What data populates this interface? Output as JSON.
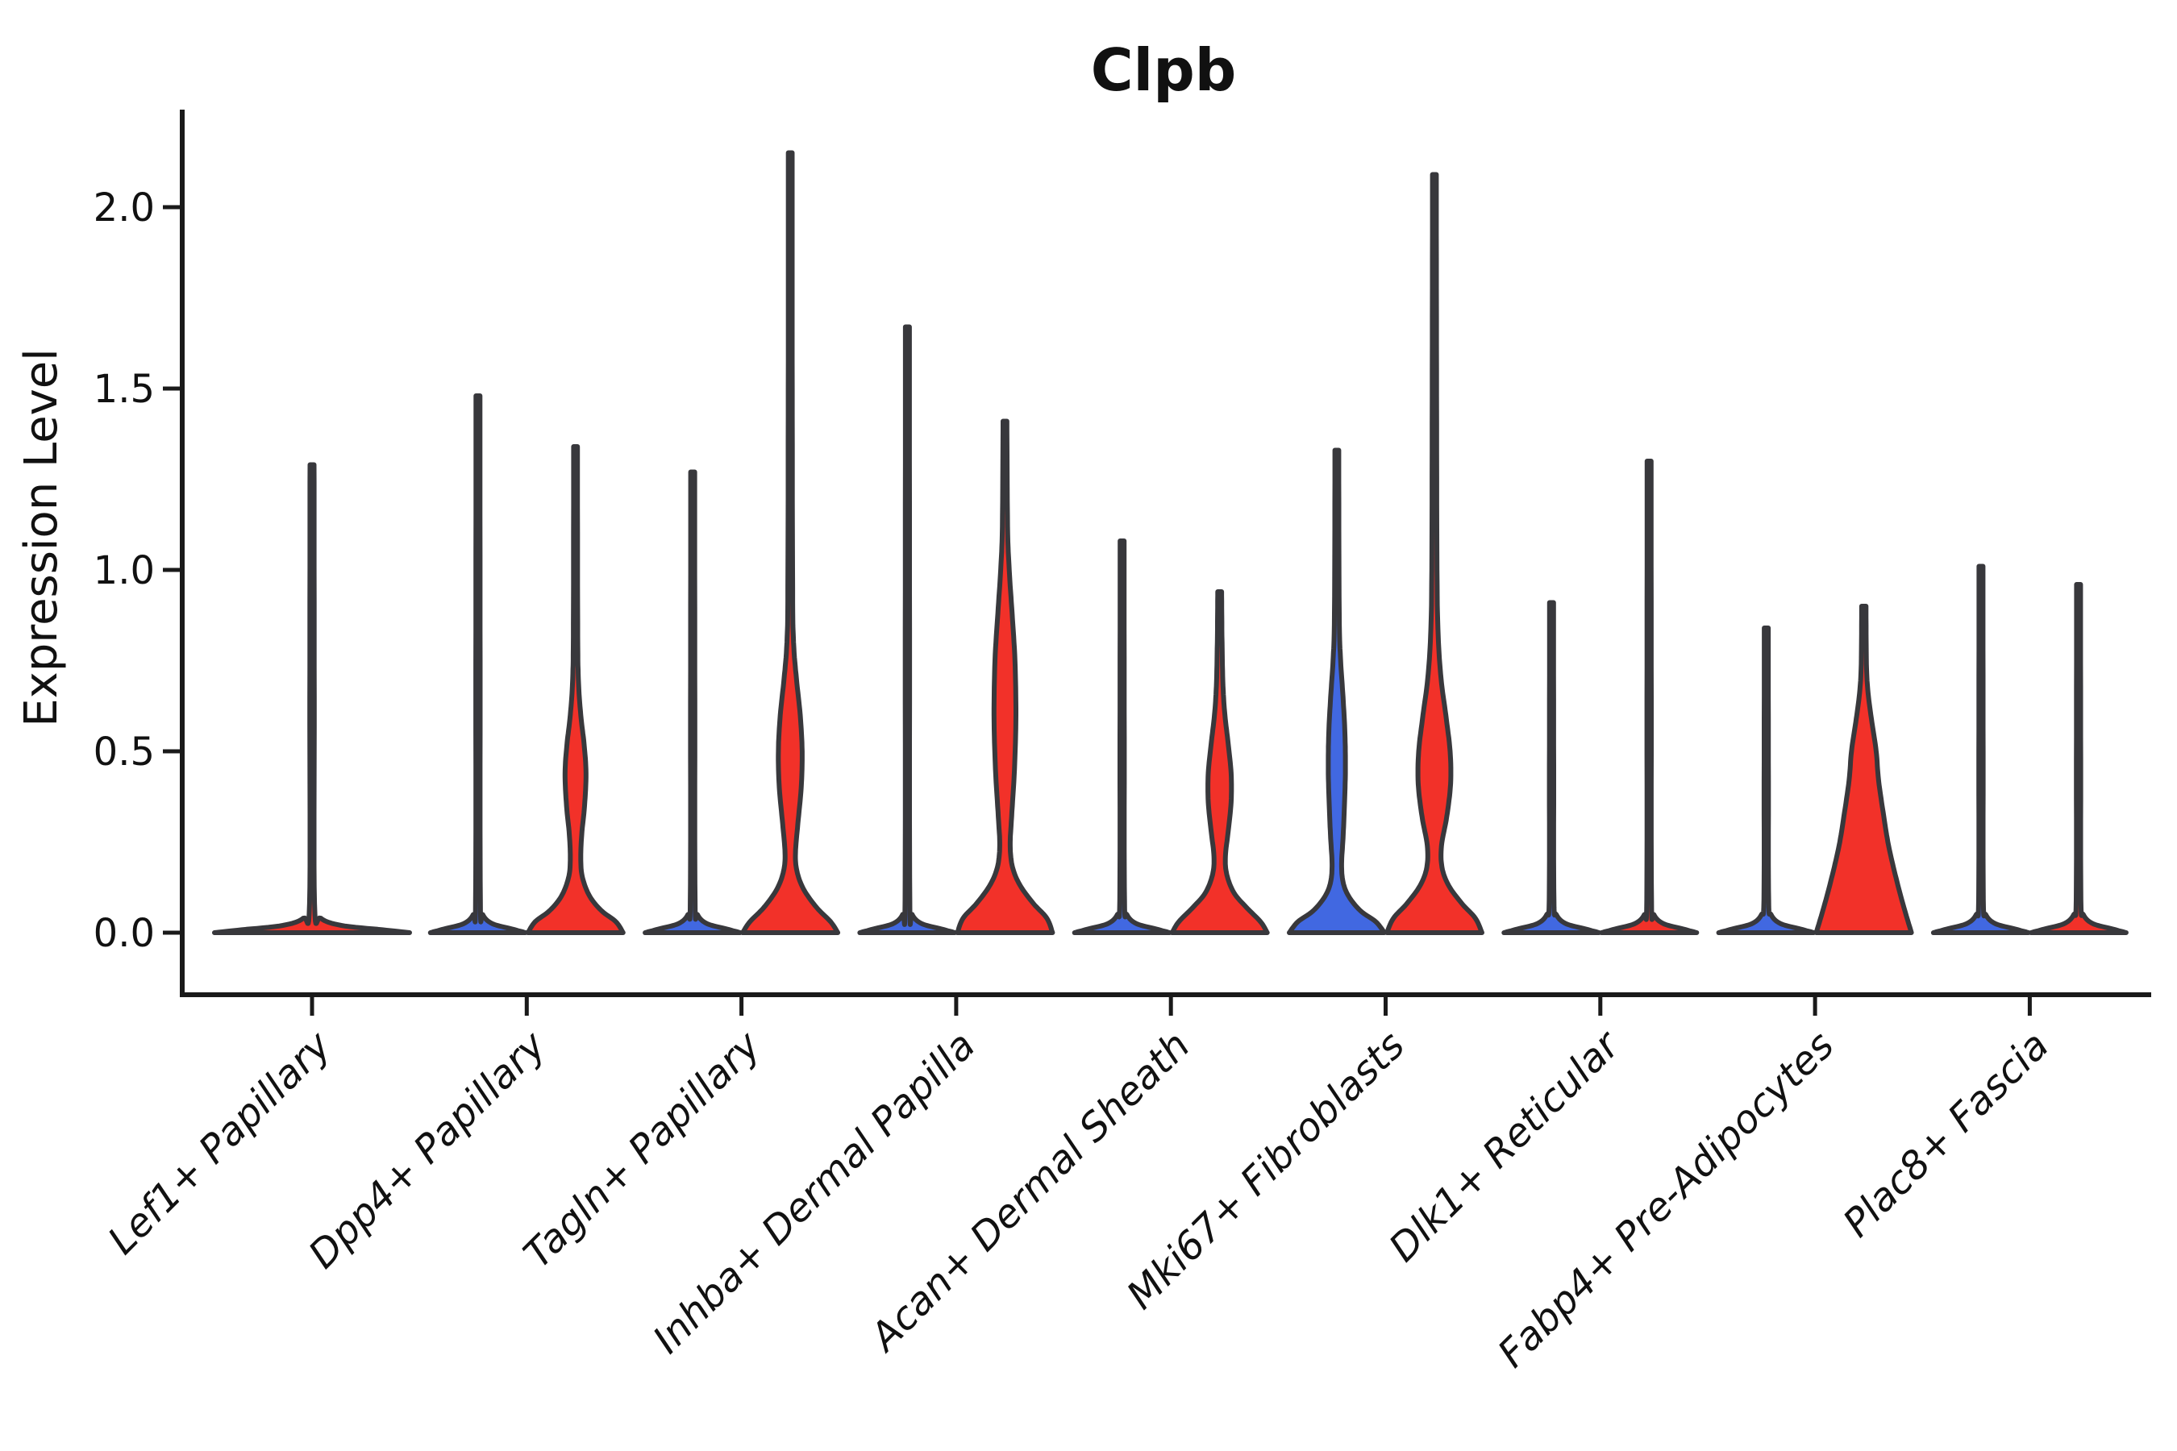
{
  "title": "Clpb",
  "y_axis": {
    "label": "Expression Level",
    "tick_labels": [
      "0.0",
      "0.5",
      "1.0",
      "1.5",
      "2.0"
    ],
    "tick_values": [
      0.0,
      0.5,
      1.0,
      1.5,
      2.0
    ]
  },
  "x_axis": {
    "categories": [
      "Lef1+ Papillary",
      "Dpp4+ Papillary",
      "Tagln+ Papillary",
      "Inhba+ Dermal Papilla",
      "Acan+ Dermal Sheath",
      "Mki67+ Fibroblasts",
      "Dlk1+ Reticular",
      "Fabp4+ Pre-Adipocytes",
      "Plac8+ Fascia"
    ]
  },
  "colors": {
    "red": "#F23129",
    "blue": "#4168E1",
    "outline": "#38383C",
    "axis": "#1A1A1A",
    "background": "#FFFFFF"
  },
  "chart_data": {
    "type": "violin",
    "title": "Clpb",
    "ylabel": "Expression Level",
    "ylim": [
      -0.08,
      2.27
    ],
    "grid": false,
    "legend": "none",
    "categories": [
      "Lef1+ Papillary",
      "Dpp4+ Papillary",
      "Tagln+ Papillary",
      "Inhba+ Dermal Papilla",
      "Acan+ Dermal Sheath",
      "Mki67+ Fibroblasts",
      "Dlk1+ Reticular",
      "Fabp4+ Pre-Adipocytes",
      "Plac8+ Fascia"
    ],
    "violins": [
      {
        "category": "Lef1+ Papillary",
        "slot": "full",
        "color": "red",
        "max_expression": 1.29,
        "body": "flat",
        "density_profile": [
          [
            0,
            1
          ],
          [
            0.008,
            0.72
          ],
          [
            0.02,
            0.3
          ],
          [
            0.04,
            0.09
          ],
          [
            0.08,
            0.026
          ],
          [
            0.65,
            0.023
          ],
          [
            1.29,
            0.021
          ]
        ]
      },
      {
        "category": "Dpp4+ Papillary",
        "slot": "left",
        "color": "blue",
        "max_expression": 1.48,
        "body": "flat",
        "density_profile": [
          [
            0,
            1
          ],
          [
            0.01,
            0.72
          ],
          [
            0.025,
            0.3
          ],
          [
            0.05,
            0.1
          ],
          [
            0.09,
            0.05
          ],
          [
            0.74,
            0.045
          ],
          [
            1.48,
            0.042
          ]
        ]
      },
      {
        "category": "Dpp4+ Papillary",
        "slot": "right",
        "color": "red",
        "max_expression": 1.34,
        "body": "bulge",
        "density_profile": [
          [
            0,
            1
          ],
          [
            0.03,
            0.85
          ],
          [
            0.06,
            0.55
          ],
          [
            0.1,
            0.3
          ],
          [
            0.15,
            0.15
          ],
          [
            0.2,
            0.11
          ],
          [
            0.27,
            0.13
          ],
          [
            0.35,
            0.19
          ],
          [
            0.44,
            0.22
          ],
          [
            0.52,
            0.18
          ],
          [
            0.6,
            0.11
          ],
          [
            0.7,
            0.06
          ],
          [
            0.85,
            0.045
          ],
          [
            1.34,
            0.04
          ]
        ]
      },
      {
        "category": "Tagln+ Papillary",
        "slot": "left",
        "color": "blue",
        "max_expression": 1.27,
        "body": "flat",
        "density_profile": [
          [
            0,
            1
          ],
          [
            0.01,
            0.72
          ],
          [
            0.025,
            0.3
          ],
          [
            0.05,
            0.1
          ],
          [
            0.09,
            0.05
          ],
          [
            0.64,
            0.045
          ],
          [
            1.27,
            0.042
          ]
        ]
      },
      {
        "category": "Tagln+ Papillary",
        "slot": "right",
        "color": "red",
        "max_expression": 2.15,
        "body": "bulge",
        "density_profile": [
          [
            0,
            1
          ],
          [
            0.03,
            0.85
          ],
          [
            0.07,
            0.55
          ],
          [
            0.12,
            0.28
          ],
          [
            0.17,
            0.14
          ],
          [
            0.22,
            0.11
          ],
          [
            0.3,
            0.16
          ],
          [
            0.4,
            0.23
          ],
          [
            0.5,
            0.25
          ],
          [
            0.6,
            0.21
          ],
          [
            0.7,
            0.13
          ],
          [
            0.8,
            0.07
          ],
          [
            0.95,
            0.05
          ],
          [
            1.5,
            0.042
          ],
          [
            2.15,
            0.04
          ]
        ]
      },
      {
        "category": "Inhba+ Dermal Papilla",
        "slot": "left",
        "color": "blue",
        "max_expression": 1.67,
        "body": "flat",
        "density_profile": [
          [
            0,
            1
          ],
          [
            0.01,
            0.72
          ],
          [
            0.025,
            0.3
          ],
          [
            0.05,
            0.1
          ],
          [
            0.09,
            0.05
          ],
          [
            0.84,
            0.045
          ],
          [
            1.67,
            0.042
          ]
        ]
      },
      {
        "category": "Inhba+ Dermal Papilla",
        "slot": "right",
        "color": "red",
        "max_expression": 1.41,
        "body": "bulge",
        "density_profile": [
          [
            0,
            1
          ],
          [
            0.04,
            0.88
          ],
          [
            0.08,
            0.6
          ],
          [
            0.13,
            0.32
          ],
          [
            0.18,
            0.16
          ],
          [
            0.24,
            0.11
          ],
          [
            0.32,
            0.14
          ],
          [
            0.45,
            0.2
          ],
          [
            0.6,
            0.23
          ],
          [
            0.75,
            0.21
          ],
          [
            0.88,
            0.15
          ],
          [
            1.0,
            0.09
          ],
          [
            1.12,
            0.055
          ],
          [
            1.41,
            0.04
          ]
        ]
      },
      {
        "category": "Acan+ Dermal Sheath",
        "slot": "left",
        "color": "blue",
        "max_expression": 1.08,
        "body": "flat",
        "density_profile": [
          [
            0,
            1
          ],
          [
            0.01,
            0.72
          ],
          [
            0.025,
            0.3
          ],
          [
            0.05,
            0.1
          ],
          [
            0.09,
            0.05
          ],
          [
            0.54,
            0.045
          ],
          [
            1.08,
            0.042
          ]
        ]
      },
      {
        "category": "Acan+ Dermal Sheath",
        "slot": "right",
        "color": "red",
        "max_expression": 0.94,
        "body": "bulge",
        "density_profile": [
          [
            0,
            1
          ],
          [
            0.03,
            0.86
          ],
          [
            0.07,
            0.56
          ],
          [
            0.11,
            0.3
          ],
          [
            0.16,
            0.15
          ],
          [
            0.21,
            0.12
          ],
          [
            0.28,
            0.18
          ],
          [
            0.36,
            0.24
          ],
          [
            0.44,
            0.24
          ],
          [
            0.52,
            0.18
          ],
          [
            0.6,
            0.11
          ],
          [
            0.68,
            0.07
          ],
          [
            0.8,
            0.05
          ],
          [
            0.94,
            0.04
          ]
        ]
      },
      {
        "category": "Mki67+ Fibroblasts",
        "slot": "left",
        "color": "blue",
        "max_expression": 1.33,
        "body": "bulge",
        "density_profile": [
          [
            0,
            1
          ],
          [
            0.03,
            0.82
          ],
          [
            0.06,
            0.5
          ],
          [
            0.1,
            0.25
          ],
          [
            0.14,
            0.13
          ],
          [
            0.19,
            0.1
          ],
          [
            0.26,
            0.13
          ],
          [
            0.35,
            0.16
          ],
          [
            0.45,
            0.18
          ],
          [
            0.55,
            0.17
          ],
          [
            0.65,
            0.13
          ],
          [
            0.75,
            0.08
          ],
          [
            0.88,
            0.05
          ],
          [
            1.33,
            0.04
          ]
        ]
      },
      {
        "category": "Mki67+ Fibroblasts",
        "slot": "right",
        "color": "red",
        "max_expression": 2.09,
        "body": "bulge",
        "density_profile": [
          [
            0,
            1
          ],
          [
            0.04,
            0.86
          ],
          [
            0.08,
            0.58
          ],
          [
            0.13,
            0.3
          ],
          [
            0.18,
            0.16
          ],
          [
            0.24,
            0.15
          ],
          [
            0.32,
            0.26
          ],
          [
            0.41,
            0.34
          ],
          [
            0.5,
            0.33
          ],
          [
            0.6,
            0.24
          ],
          [
            0.7,
            0.14
          ],
          [
            0.82,
            0.08
          ],
          [
            1.0,
            0.055
          ],
          [
            1.55,
            0.045
          ],
          [
            2.09,
            0.04
          ]
        ]
      },
      {
        "category": "Dlk1+ Reticular",
        "slot": "left",
        "color": "blue",
        "max_expression": 0.91,
        "body": "flat",
        "density_profile": [
          [
            0,
            1
          ],
          [
            0.01,
            0.72
          ],
          [
            0.025,
            0.3
          ],
          [
            0.05,
            0.1
          ],
          [
            0.09,
            0.05
          ],
          [
            0.46,
            0.045
          ],
          [
            0.91,
            0.042
          ]
        ]
      },
      {
        "category": "Dlk1+ Reticular",
        "slot": "right",
        "color": "red",
        "max_expression": 1.3,
        "body": "flat",
        "density_profile": [
          [
            0,
            1
          ],
          [
            0.01,
            0.72
          ],
          [
            0.025,
            0.3
          ],
          [
            0.05,
            0.1
          ],
          [
            0.09,
            0.05
          ],
          [
            0.65,
            0.045
          ],
          [
            1.3,
            0.042
          ]
        ]
      },
      {
        "category": "Fabp4+ Pre-Adipocytes",
        "slot": "left",
        "color": "blue",
        "max_expression": 0.84,
        "body": "flat",
        "density_profile": [
          [
            0,
            1
          ],
          [
            0.01,
            0.72
          ],
          [
            0.025,
            0.3
          ],
          [
            0.05,
            0.1
          ],
          [
            0.09,
            0.05
          ],
          [
            0.42,
            0.045
          ],
          [
            0.84,
            0.042
          ]
        ]
      },
      {
        "category": "Fabp4+ Pre-Adipocytes",
        "slot": "right",
        "color": "red",
        "max_expression": 0.9,
        "body": "cone",
        "density_profile": [
          [
            0,
            1
          ],
          [
            0.08,
            0.82
          ],
          [
            0.16,
            0.66
          ],
          [
            0.24,
            0.52
          ],
          [
            0.32,
            0.42
          ],
          [
            0.42,
            0.31
          ],
          [
            0.5,
            0.26
          ],
          [
            0.58,
            0.17
          ],
          [
            0.66,
            0.09
          ],
          [
            0.74,
            0.055
          ],
          [
            0.9,
            0.045
          ]
        ]
      },
      {
        "category": "Plac8+ Fascia",
        "slot": "left",
        "color": "blue",
        "max_expression": 1.01,
        "body": "flat",
        "density_profile": [
          [
            0,
            1
          ],
          [
            0.01,
            0.72
          ],
          [
            0.025,
            0.3
          ],
          [
            0.05,
            0.1
          ],
          [
            0.09,
            0.05
          ],
          [
            0.5,
            0.045
          ],
          [
            1.01,
            0.042
          ]
        ]
      },
      {
        "category": "Plac8+ Fascia",
        "slot": "right",
        "color": "red",
        "max_expression": 0.96,
        "body": "flat",
        "density_profile": [
          [
            0,
            1
          ],
          [
            0.01,
            0.72
          ],
          [
            0.025,
            0.3
          ],
          [
            0.05,
            0.1
          ],
          [
            0.09,
            0.05
          ],
          [
            0.48,
            0.045
          ],
          [
            0.96,
            0.042
          ]
        ]
      }
    ]
  }
}
